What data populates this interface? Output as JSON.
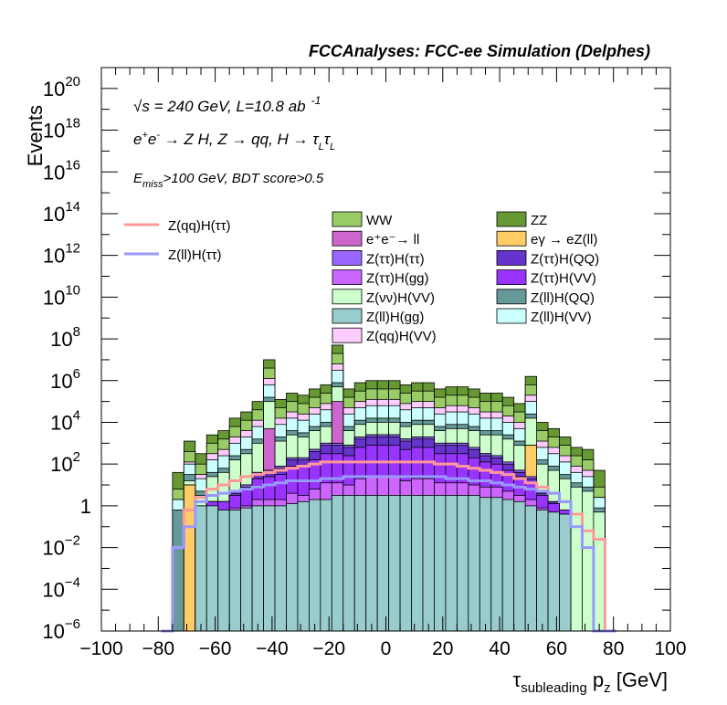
{
  "colors": {
    "WW": "#99cc66",
    "ZZ": "#669933",
    "ee_ll": "#cc66cc",
    "egamma": "#ffcc66",
    "ztautau_htautau": "#9966ff",
    "ztautau_hqq": "#6633cc",
    "ztautau_hgg": "#cc66ff",
    "ztautau_hvv": "#9933ff",
    "znunu_hvv": "#ccffcc",
    "zll_hqq": "#669999",
    "zll_hgg": "#99cccc",
    "zll_hvv": "#ccffff",
    "zqq_hvv": "#ffccff",
    "sig_zqq": "#ff9999",
    "sig_zll": "#9999ff"
  },
  "chart_data": {
    "type": "histogram",
    "title": "FCCAnalyses: FCC-ee Simulation (Delphes)",
    "annotations": {
      "energy_a": "√s",
      "energy_b": " = 240 GeV, L=10.8 ab",
      "energy_sup": "-1",
      "process": "e⁺e⁻ → Z H, Z → qq, H → τ_L τ_L",
      "process_parts": [
        "e",
        "+",
        "e",
        "-",
        " → Z H, Z  → qq, H  → τ",
        "L",
        "τ",
        "L"
      ],
      "cut_a": "E",
      "cut_sub": "miss",
      "cut_b": ">100 GeV, BDT score>0.5"
    },
    "xlabel_main": "τ",
    "xlabel_sub": "subleading",
    "xlabel_rest": " p",
    "xlabel_sub2": "z",
    "xlabel_unit": " [GeV]",
    "ylabel": "Events",
    "xlim": [
      -100,
      100
    ],
    "ylog": true,
    "ylim_exp": [
      -6,
      21
    ],
    "xticks": [
      "−100",
      "−80",
      "−60",
      "−40",
      "−20",
      "0",
      "20",
      "40",
      "60",
      "80",
      "100"
    ],
    "xtick_values": [
      -100,
      -80,
      -60,
      -40,
      -20,
      0,
      20,
      40,
      60,
      80,
      100
    ],
    "yticks": [
      {
        "exp": -6,
        "base": "10",
        "sup": "−6"
      },
      {
        "exp": -4,
        "base": "10",
        "sup": "−4"
      },
      {
        "exp": -2,
        "base": "10",
        "sup": "−2"
      },
      {
        "exp": 0,
        "base": "1",
        "sup": ""
      },
      {
        "exp": 2,
        "base": "10",
        "sup": "2"
      },
      {
        "exp": 4,
        "base": "10",
        "sup": "4"
      },
      {
        "exp": 6,
        "base": "10",
        "sup": "6"
      },
      {
        "exp": 8,
        "base": "10",
        "sup": "8"
      },
      {
        "exp": 10,
        "base": "10",
        "sup": "10"
      },
      {
        "exp": 12,
        "base": "10",
        "sup": "12"
      },
      {
        "exp": 14,
        "base": "10",
        "sup": "14"
      },
      {
        "exp": 16,
        "base": "10",
        "sup": "16"
      },
      {
        "exp": 18,
        "base": "10",
        "sup": "18"
      },
      {
        "exp": 20,
        "base": "10",
        "sup": "20"
      }
    ],
    "bins": {
      "start": -75,
      "width": 4,
      "count": 38
    },
    "stack": [
      {
        "key": "zll_hgg",
        "name": "Z(ll)H(gg)",
        "color": "#99cccc",
        "values": [
          0,
          0,
          0.5,
          0.5,
          0.3,
          0.3,
          0.4,
          0.5,
          0.5,
          0.5,
          0.6,
          0.7,
          0.8,
          0.8,
          1,
          1,
          1,
          1,
          1,
          1,
          1,
          1,
          1,
          1,
          1,
          1,
          1,
          0.9,
          0.9,
          0.8,
          0.7,
          0.5,
          0.3,
          0.2,
          0.1,
          0,
          0,
          0
        ]
      },
      {
        "key": "ztautau_hgg",
        "name": "Z(ττ)H(gg)",
        "color": "#cc66ff",
        "values": [
          0,
          0,
          0,
          0,
          0,
          0.1,
          0.1,
          0.3,
          0.3,
          0.3,
          0.5,
          0.3,
          0.5,
          0.8,
          0.6,
          0.5,
          0.8,
          0.9,
          0.9,
          0.9,
          0.7,
          0.8,
          0.8,
          0.6,
          0.6,
          0.6,
          0.5,
          0.5,
          0.5,
          0.4,
          0.3,
          0.3,
          0.1,
          0,
          0,
          0,
          0,
          0
        ]
      },
      {
        "key": "ztautau_hvv",
        "name": "Z(ττ)H(VV)",
        "color": "#9933ff",
        "values": [
          0,
          0,
          0,
          0.2,
          0.4,
          0.6,
          0.8,
          1.0,
          1.1,
          1.2,
          1.3,
          1.4,
          1.4,
          1.4,
          1.4,
          1.4,
          1.5,
          1.5,
          1.5,
          1.5,
          1.5,
          1.5,
          1.5,
          1.4,
          1.4,
          1.4,
          1.3,
          1.2,
          1.1,
          1.0,
          0.9,
          0.8,
          0.6,
          0.4,
          0.2,
          0,
          0,
          0
        ]
      },
      {
        "key": "ztautau_hqq",
        "name": "Z(ττ)H(QQ)",
        "color": "#6633cc",
        "values": [
          0,
          0,
          0,
          0,
          0,
          0.1,
          0.1,
          0.2,
          0.2,
          0.3,
          0.3,
          0.3,
          0.4,
          0.4,
          0.4,
          0.4,
          0.4,
          0.4,
          0.4,
          0.4,
          0.4,
          0.4,
          0.4,
          0.4,
          0.4,
          0.4,
          0.4,
          0.3,
          0.3,
          0.3,
          0.2,
          0.2,
          0.1,
          0.1,
          0,
          0,
          0,
          0
        ]
      },
      {
        "key": "ztautau_htautau",
        "name": "Z(ττ)H(ττ)",
        "color": "#9966ff",
        "values": [
          0,
          0,
          0,
          0,
          0,
          0.1,
          0.1,
          0.1,
          0.1,
          0.1,
          0.1,
          0.1,
          0.1,
          0.1,
          0.1,
          0.1,
          0.1,
          0.1,
          0.1,
          0.1,
          0.1,
          0.1,
          0.1,
          0.1,
          0.1,
          0.1,
          0.1,
          0.1,
          0.1,
          0.1,
          0.1,
          0.1,
          0,
          0,
          0,
          0,
          0,
          0
        ]
      },
      {
        "key": "egamma",
        "name": "eγ → eZ(ll)",
        "color": "#ffcc66",
        "values": [
          0,
          1.5,
          0,
          0,
          0,
          0,
          0,
          0,
          0,
          0,
          0,
          0,
          0,
          0,
          0,
          0,
          0,
          0,
          0,
          0,
          0,
          0,
          0,
          0,
          0,
          0,
          0,
          0,
          0,
          0,
          0,
          1.5,
          0,
          0,
          0,
          0,
          0,
          0
        ]
      },
      {
        "key": "ee_ll",
        "name": "e⁺e⁻→ ll",
        "color": "#cc66cc",
        "values": [
          0,
          0,
          0,
          0,
          0,
          0,
          0,
          0,
          2,
          0,
          0,
          0,
          0,
          0,
          2,
          0,
          0,
          0,
          0,
          0,
          0,
          0,
          0,
          0,
          0,
          0,
          0,
          0,
          0,
          0,
          0,
          0,
          0,
          0,
          0,
          0,
          0,
          0
        ]
      },
      {
        "key": "znunu_hvv",
        "name": "Z(νν)H(VV)",
        "color": "#ccffcc",
        "values": [
          0,
          0.2,
          0.5,
          1.2,
          1.4,
          1.5,
          1.5,
          1.4,
          1.3,
          1.2,
          1.1,
          1.0,
          0.9,
          0.8,
          0.7,
          0.7,
          0.6,
          0.6,
          0.6,
          0.6,
          0.6,
          0.6,
          0.6,
          0.6,
          0.7,
          0.7,
          0.8,
          0.9,
          1.0,
          1.1,
          1.2,
          1.3,
          1.4,
          1.5,
          1.5,
          1.4,
          1.2,
          0.2
        ]
      },
      {
        "key": "zll_hqq",
        "name": "Z(ll)H(QQ)",
        "color": "#669999",
        "values": [
          0.3,
          0.3,
          0.2,
          0.2,
          0.2,
          0.2,
          0.2,
          0.2,
          0.2,
          0.2,
          0.2,
          0.2,
          0.2,
          0.2,
          0.2,
          0.2,
          0.2,
          0.2,
          0.2,
          0.2,
          0.2,
          0.2,
          0.2,
          0.2,
          0.2,
          0.2,
          0.2,
          0.2,
          0.2,
          0.2,
          0.2,
          0.2,
          0.2,
          0.2,
          0.2,
          0.2,
          0.2,
          0.2
        ]
      },
      {
        "key": "zll_hvv",
        "name": "Z(ll)H(VV)",
        "color": "#ccffff",
        "values": [
          0.5,
          0.5,
          0.6,
          0.6,
          0.6,
          0.6,
          0.6,
          0.6,
          0.6,
          0.6,
          0.6,
          0.6,
          0.6,
          0.6,
          0.6,
          0.6,
          0.6,
          0.6,
          0.6,
          0.6,
          0.6,
          0.6,
          0.6,
          0.6,
          0.6,
          0.6,
          0.6,
          0.6,
          0.6,
          0.6,
          0.6,
          0.6,
          0.6,
          0.6,
          0.6,
          0.5,
          0.5,
          0.5
        ]
      },
      {
        "key": "zqq_hvv",
        "name": "Z(qq)H(VV)",
        "color": "#ffccff",
        "values": [
          0,
          0.1,
          0.2,
          0.3,
          0.3,
          0.3,
          0.3,
          0.3,
          0.3,
          0.3,
          0.3,
          0.3,
          0.3,
          0.3,
          0.3,
          0.3,
          0.3,
          0.3,
          0.3,
          0.3,
          0.3,
          0.3,
          0.3,
          0.3,
          0.3,
          0.3,
          0.3,
          0.3,
          0.3,
          0.3,
          0.3,
          0.3,
          0.3,
          0.3,
          0.3,
          0.3,
          0.3,
          0
        ]
      },
      {
        "key": "WW",
        "name": "WW",
        "color": "#99cc66",
        "values": [
          0.5,
          0.5,
          0.5,
          0.5,
          0.5,
          0.5,
          0.5,
          0.5,
          0.5,
          0.5,
          0.5,
          0.5,
          0.5,
          0.5,
          0.5,
          0.5,
          0.5,
          0.5,
          0.5,
          0.5,
          0.5,
          0.5,
          0.5,
          0.5,
          0.5,
          0.5,
          0.5,
          0.5,
          0.5,
          0.5,
          0.5,
          0.5,
          0.5,
          0.5,
          0.5,
          0.5,
          0.5,
          0.5
        ]
      },
      {
        "key": "ZZ",
        "name": "ZZ",
        "color": "#669933",
        "values": [
          0.8,
          0.5,
          0.5,
          0.4,
          0.4,
          0.4,
          0.4,
          0.4,
          0.4,
          0.4,
          0.4,
          0.4,
          0.4,
          0.4,
          0.4,
          0.4,
          0.4,
          0.4,
          0.4,
          0.4,
          0.4,
          0.4,
          0.4,
          0.4,
          0.4,
          0.4,
          0.4,
          0.4,
          0.4,
          0.4,
          0.4,
          0.4,
          0.4,
          0.4,
          0.4,
          0.4,
          0.5,
          0.8
        ]
      }
    ],
    "signals": [
      {
        "name": "Z(qq)H(ττ)",
        "color": "#ff9999",
        "start": -79,
        "width": 4,
        "values_exp": [
          -6,
          -2,
          -0.2,
          0.4,
          0.8,
          1.0,
          1.2,
          1.4,
          1.5,
          1.6,
          1.7,
          1.8,
          1.9,
          2.0,
          2.1,
          2.1,
          2.1,
          2.1,
          2.1,
          2.1,
          2.1,
          2.1,
          2.1,
          2.1,
          2.0,
          2.0,
          1.9,
          1.8,
          1.7,
          1.6,
          1.5,
          1.3,
          1.1,
          0.9,
          0.6,
          0.2,
          -0.4,
          -1.2,
          -1.6,
          -6
        ]
      },
      {
        "name": "Z(ll)H(ττ)",
        "color": "#9999ff",
        "start": -79,
        "width": 4,
        "values_exp": [
          -6,
          -2,
          -1.0,
          0.2,
          0.5,
          0.6,
          0.7,
          0.8,
          0.9,
          1.0,
          1.1,
          1.2,
          1.2,
          1.2,
          1.3,
          1.3,
          1.4,
          1.4,
          1.4,
          1.4,
          1.4,
          1.4,
          1.4,
          1.4,
          1.4,
          1.3,
          1.3,
          1.2,
          1.2,
          1.1,
          1.0,
          0.9,
          0.8,
          0.7,
          0.6,
          0.2,
          -1.0,
          -2,
          -6,
          -6
        ]
      }
    ],
    "legend_left": [
      {
        "name": "Z(qq)H(ττ)",
        "color": "#ff9999",
        "kind": "line"
      },
      {
        "name": "Z(ll)H(ττ)",
        "color": "#9999ff",
        "kind": "line"
      }
    ],
    "legend_col1": [
      {
        "name": "WW",
        "color": "#99cc66"
      },
      {
        "name": "e⁺e⁻→ ll",
        "color": "#cc66cc"
      },
      {
        "name": "Z(ττ)H(ττ)",
        "color": "#9966ff"
      },
      {
        "name": "Z(ττ)H(gg)",
        "color": "#cc66ff"
      },
      {
        "name": "Z(νν)H(VV)",
        "color": "#ccffcc"
      },
      {
        "name": "Z(ll)H(gg)",
        "color": "#99cccc"
      },
      {
        "name": "Z(qq)H(VV)",
        "color": "#ffccff"
      }
    ],
    "legend_col2": [
      {
        "name": "ZZ",
        "color": "#669933"
      },
      {
        "name": "eγ → eZ(ll)",
        "color": "#ffcc66"
      },
      {
        "name": "Z(ττ)H(QQ)",
        "color": "#6633cc"
      },
      {
        "name": "Z(ττ)H(VV)",
        "color": "#9933ff"
      },
      {
        "name": "Z(ll)H(QQ)",
        "color": "#669999"
      },
      {
        "name": "Z(ll)H(VV)",
        "color": "#ccffff"
      }
    ]
  }
}
